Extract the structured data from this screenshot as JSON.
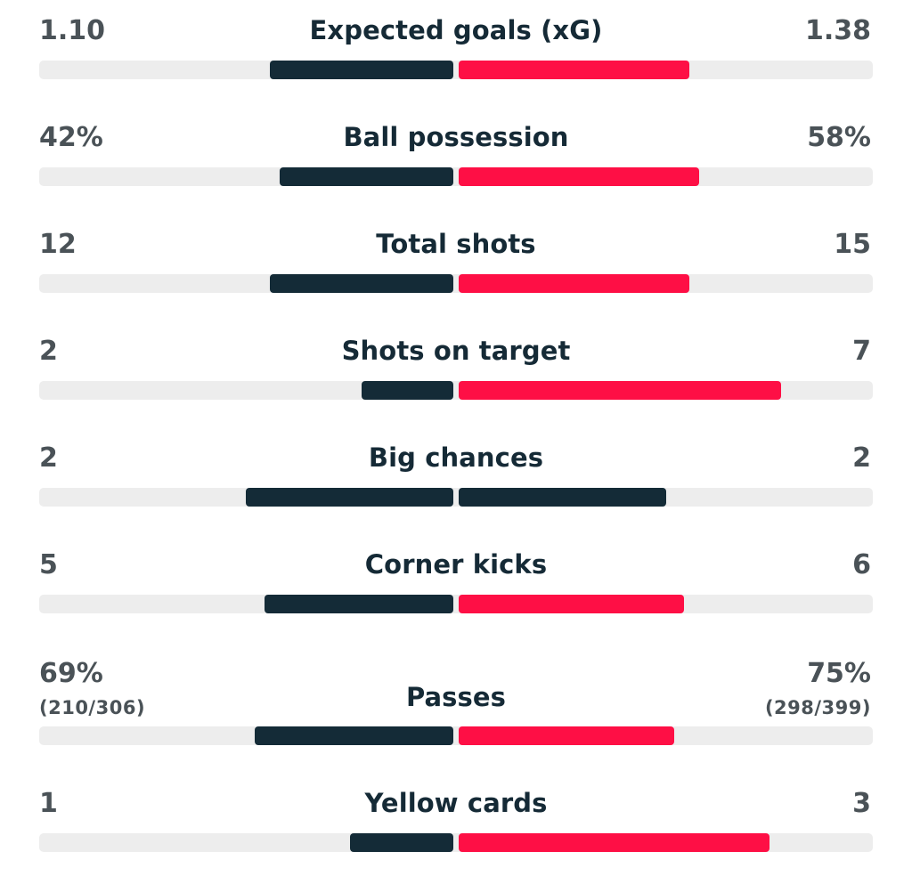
{
  "colors": {
    "home": "#142b37",
    "away": "#fe0f45",
    "track": "#ededed"
  },
  "stats": [
    {
      "label": "Expected goals (xG)",
      "home": "1.10",
      "away": "1.38",
      "home_share": 0.443,
      "away_share": 0.557,
      "away_color": "#fe0f45"
    },
    {
      "label": "Ball possession",
      "home": "42%",
      "away": "58%",
      "home_share": 0.42,
      "away_share": 0.58,
      "away_color": "#fe0f45"
    },
    {
      "label": "Total shots",
      "home": "12",
      "away": "15",
      "home_share": 0.444,
      "away_share": 0.556,
      "away_color": "#fe0f45"
    },
    {
      "label": "Shots on target",
      "home": "2",
      "away": "7",
      "home_share": 0.222,
      "away_share": 0.778,
      "away_color": "#fe0f45"
    },
    {
      "label": "Big chances",
      "home": "2",
      "away": "2",
      "home_share": 0.5,
      "away_share": 0.5,
      "away_color": "#142b37"
    },
    {
      "label": "Corner kicks",
      "home": "5",
      "away": "6",
      "home_share": 0.455,
      "away_share": 0.545,
      "away_color": "#fe0f45"
    },
    {
      "label": "Passes",
      "home": "69%",
      "away": "75%",
      "home_sub": "(210/306)",
      "away_sub": "(298/399)",
      "home_share": 0.479,
      "away_share": 0.521,
      "away_color": "#fe0f45"
    },
    {
      "label": "Yellow cards",
      "home": "1",
      "away": "3",
      "home_share": 0.25,
      "away_share": 0.75,
      "away_color": "#fe0f45"
    }
  ]
}
